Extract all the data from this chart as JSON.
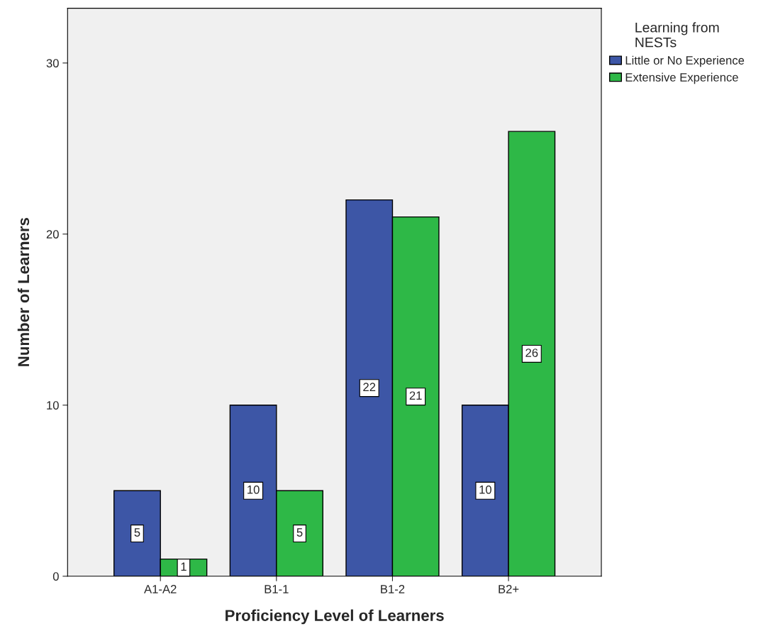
{
  "chart_data": {
    "type": "bar",
    "xlabel": "Proficiency Level of Learners",
    "ylabel": "Number of Learners",
    "legend_title": "Learning from\nNESTs",
    "categories": [
      "A1-A2",
      "B1-1",
      "B1-2",
      "B2+"
    ],
    "series": [
      {
        "name": "Little or No Experience",
        "color": "#3d56a6",
        "values": [
          5,
          10,
          22,
          10
        ]
      },
      {
        "name": "Extensive Experience",
        "color": "#2eb847",
        "values": [
          1,
          5,
          21,
          26
        ]
      }
    ],
    "ylim": [
      0,
      33.2
    ],
    "yticks": [
      0,
      10,
      20,
      30
    ],
    "grid": false,
    "legend": "top right",
    "data_labels": true
  }
}
